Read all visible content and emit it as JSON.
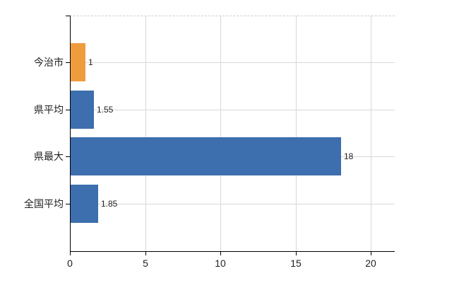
{
  "chart_data": {
    "type": "bar",
    "orientation": "horizontal",
    "title": "",
    "xlabel": "",
    "ylabel": "",
    "categories": [
      "今治市",
      "県平均",
      "県最大",
      "全国平均"
    ],
    "values": [
      1,
      1.55,
      18,
      1.85
    ],
    "value_labels": [
      "1",
      "1.55",
      "18",
      "1.85"
    ],
    "bar_colors": [
      "#ef9c3d",
      "#3d6ead",
      "#3d6ead",
      "#3d6ead"
    ],
    "x_ticks": [
      0,
      5,
      10,
      15,
      20
    ],
    "x_tick_labels": [
      "0",
      "5",
      "10",
      "15",
      "20"
    ],
    "xlim": [
      0,
      21.6
    ],
    "legend": null,
    "grid": {
      "vertical": true,
      "horizontal": true,
      "color": "#d8d8d8",
      "top_border": "dashed"
    },
    "colors": {
      "axis": "#000000",
      "text": "#1f1f1f",
      "background": "#ffffff",
      "bar_blue": "#3d6ead",
      "bar_orange": "#ef9c3d"
    }
  }
}
